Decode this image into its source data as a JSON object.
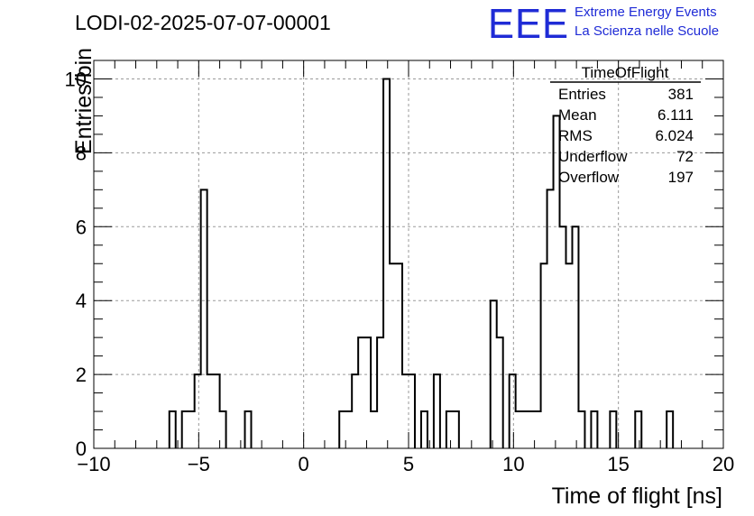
{
  "header": {
    "title": "LODI-02-2025-07-07-00001",
    "logo_text": "EEE",
    "logo_line1": "Extreme Energy Events",
    "logo_line2": "La Scienza nelle Scuole",
    "logo_color": "#1f2bd6"
  },
  "stats_box": {
    "title": "TimeOfFlight",
    "rows": [
      {
        "label": "Entries",
        "value": "381"
      },
      {
        "label": "Mean",
        "value": "6.111"
      },
      {
        "label": "RMS",
        "value": "6.024"
      },
      {
        "label": "Underflow",
        "value": "72"
      },
      {
        "label": "Overflow",
        "value": "197"
      }
    ]
  },
  "chart_data": {
    "type": "bar",
    "histogram": "step",
    "xlabel": "Time of flight [ns]",
    "ylabel": "Entries/bin",
    "xlim": [
      -10,
      20
    ],
    "ylim": [
      0,
      10.5
    ],
    "bin_width": 0.3,
    "grid": true,
    "x_ticks": [
      -10,
      -5,
      0,
      5,
      10,
      15,
      20
    ],
    "x_tick_labels": [
      "−10",
      "−5",
      "0",
      "5",
      "10",
      "15",
      "20"
    ],
    "y_ticks": [
      0,
      2,
      4,
      6,
      8,
      10
    ],
    "y_tick_labels": [
      "0",
      "2",
      "4",
      "6",
      "8",
      "10"
    ],
    "bins": [
      {
        "x": -6.4,
        "y": 1
      },
      {
        "x": -5.8,
        "y": 1
      },
      {
        "x": -5.5,
        "y": 1
      },
      {
        "x": -5.2,
        "y": 2
      },
      {
        "x": -4.9,
        "y": 7
      },
      {
        "x": -4.6,
        "y": 2
      },
      {
        "x": -4.3,
        "y": 2
      },
      {
        "x": -4.0,
        "y": 1
      },
      {
        "x": -2.8,
        "y": 1
      },
      {
        "x": 1.7,
        "y": 1
      },
      {
        "x": 2.0,
        "y": 1
      },
      {
        "x": 2.3,
        "y": 2
      },
      {
        "x": 2.6,
        "y": 3
      },
      {
        "x": 2.9,
        "y": 3
      },
      {
        "x": 3.2,
        "y": 1
      },
      {
        "x": 3.5,
        "y": 3
      },
      {
        "x": 3.8,
        "y": 10
      },
      {
        "x": 4.1,
        "y": 5
      },
      {
        "x": 4.4,
        "y": 5
      },
      {
        "x": 4.7,
        "y": 2
      },
      {
        "x": 5.0,
        "y": 2
      },
      {
        "x": 5.6,
        "y": 1
      },
      {
        "x": 6.2,
        "y": 2
      },
      {
        "x": 6.8,
        "y": 1
      },
      {
        "x": 7.1,
        "y": 1
      },
      {
        "x": 8.9,
        "y": 4
      },
      {
        "x": 9.2,
        "y": 3
      },
      {
        "x": 9.8,
        "y": 2
      },
      {
        "x": 10.1,
        "y": 1
      },
      {
        "x": 10.4,
        "y": 1
      },
      {
        "x": 10.7,
        "y": 1
      },
      {
        "x": 11.0,
        "y": 1
      },
      {
        "x": 11.3,
        "y": 5
      },
      {
        "x": 11.6,
        "y": 7
      },
      {
        "x": 11.9,
        "y": 9
      },
      {
        "x": 12.2,
        "y": 6
      },
      {
        "x": 12.5,
        "y": 5
      },
      {
        "x": 12.8,
        "y": 6
      },
      {
        "x": 13.1,
        "y": 1
      },
      {
        "x": 13.7,
        "y": 1
      },
      {
        "x": 14.6,
        "y": 1
      },
      {
        "x": 15.8,
        "y": 1
      },
      {
        "x": 17.3,
        "y": 1
      }
    ]
  }
}
